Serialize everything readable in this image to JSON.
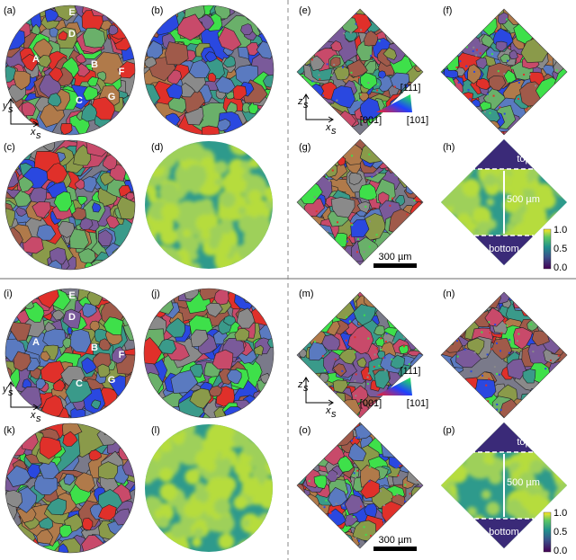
{
  "sections": [
    {
      "panels": [
        "(a)",
        "(b)",
        "(c)",
        "(d)",
        "(e)",
        "(f)",
        "(g)",
        "(h)"
      ],
      "grains": [
        "E",
        "D",
        "A",
        "B",
        "F",
        "C",
        "G"
      ],
      "sample_axes": {
        "y": "y",
        "x": "x",
        "subscript": "s"
      },
      "build_axes": {
        "z": "z",
        "x": "x",
        "subscript": "s"
      },
      "ipf": [
        "[111]",
        "[001]",
        "[101]"
      ],
      "scale_bar": "300 µm",
      "top": "top",
      "bottom": "bottom",
      "height": "500 µm",
      "colorbar": [
        "1.0",
        "0.5",
        "0.0"
      ]
    },
    {
      "panels": [
        "(i)",
        "(j)",
        "(k)",
        "(l)",
        "(m)",
        "(n)",
        "(o)",
        "(p)"
      ],
      "grains": [
        "E",
        "D",
        "A",
        "B",
        "F",
        "C",
        "G"
      ],
      "sample_axes": {
        "y": "y",
        "x": "x",
        "subscript": "s"
      },
      "build_axes": {
        "z": "z",
        "x": "x",
        "subscript": "s"
      },
      "ipf": [
        "[111]",
        "[001]",
        "[101]"
      ],
      "scale_bar": "300 µm",
      "top": "top",
      "bottom": "bottom",
      "height": "500 µm",
      "colorbar": [
        "1.0",
        "0.5",
        "0.0"
      ]
    }
  ]
}
